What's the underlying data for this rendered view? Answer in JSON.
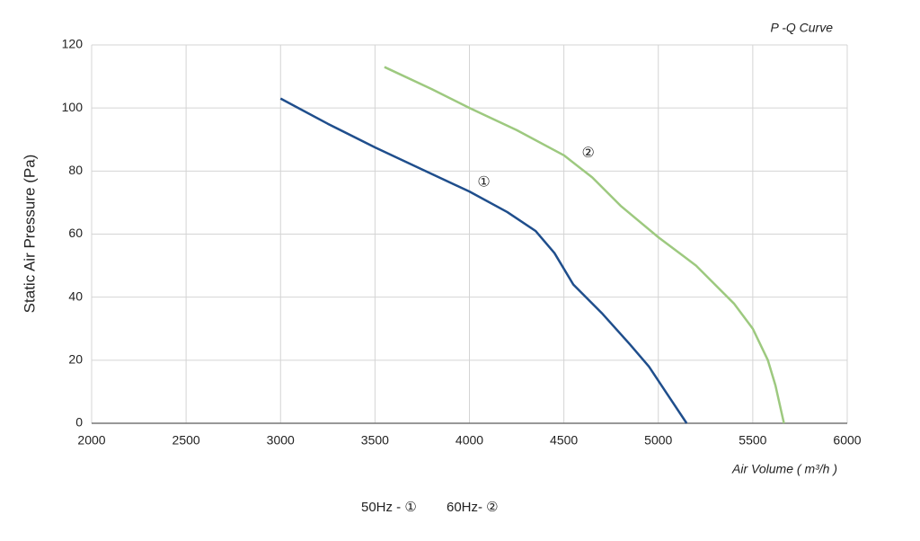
{
  "chart_data": {
    "type": "line",
    "title": "P -Q Curve",
    "x_label": "Air Volume ( m³/h )",
    "y_label": "Static Air Pressure  (Pa)",
    "xlim": [
      2000,
      6000
    ],
    "xticks": [
      2000,
      2500,
      3000,
      3500,
      4000,
      4500,
      5000,
      5500,
      6000
    ],
    "ylim": [
      0,
      120
    ],
    "yticks": [
      0,
      20,
      40,
      60,
      80,
      100,
      120
    ],
    "grid": true,
    "series": [
      {
        "name": "50Hz - ①",
        "annotation": "①",
        "color": "#1f4e8c",
        "x": [
          3000,
          3250,
          3500,
          3750,
          4000,
          4200,
          4350,
          4450,
          4550,
          4700,
          4850,
          4950,
          5050,
          5150
        ],
        "values": [
          103,
          95,
          87.5,
          80.5,
          73.5,
          67,
          61,
          54,
          44,
          35,
          25,
          18,
          9,
          0
        ]
      },
      {
        "name": "60Hz- ②",
        "annotation": "②",
        "color": "#9dc97f",
        "x": [
          3550,
          3800,
          4000,
          4250,
          4500,
          4650,
          4800,
          5000,
          5200,
          5400,
          5500,
          5580,
          5620,
          5665
        ],
        "values": [
          113,
          106,
          100,
          93,
          85,
          78,
          69,
          59,
          50,
          38,
          30,
          20,
          12,
          0
        ]
      }
    ]
  }
}
